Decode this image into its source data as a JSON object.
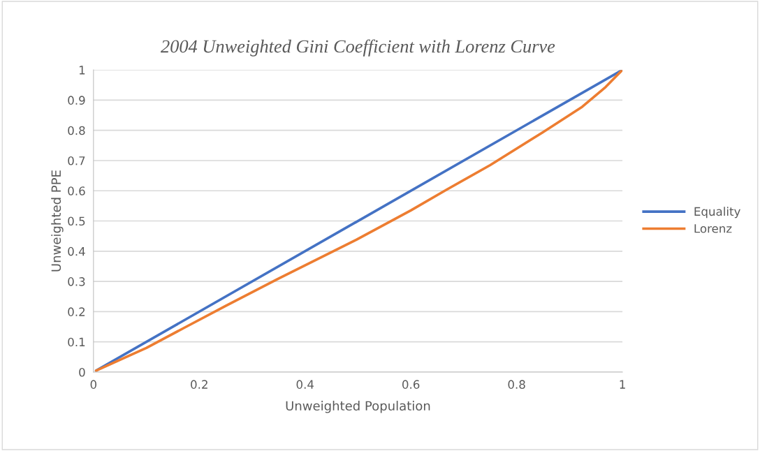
{
  "chart_data": {
    "type": "line",
    "title": "2004 Unweighted Gini Coefficient with Lorenz Curve",
    "xlabel": "Unweighted Population",
    "ylabel": "Unweighted PPE",
    "xlim": [
      0,
      1
    ],
    "xticks": [
      0,
      0.2,
      0.4,
      0.6,
      0.8,
      1
    ],
    "ylim": [
      0,
      1
    ],
    "yticks": [
      0,
      0.1,
      0.2,
      0.3,
      0.4,
      0.5,
      0.6,
      0.7,
      0.8,
      0.9,
      1
    ],
    "grid": "y",
    "legend": "right",
    "marker": "none",
    "line_style": "solid",
    "series": [
      {
        "name": "Equality",
        "color": "#4472c4",
        "x": [
          0.005,
          1
        ],
        "values": [
          0.005,
          1
        ]
      },
      {
        "name": "Lorenz",
        "color": "#ed7d31",
        "x": [
          0.005,
          0.1,
          0.171,
          0.25,
          0.347,
          0.497,
          0.6,
          0.668,
          0.75,
          0.849,
          0.924,
          0.968,
          1
        ],
        "values": [
          0.005,
          0.08,
          0.146,
          0.219,
          0.307,
          0.438,
          0.535,
          0.604,
          0.685,
          0.793,
          0.878,
          0.943,
          1
        ]
      }
    ]
  }
}
